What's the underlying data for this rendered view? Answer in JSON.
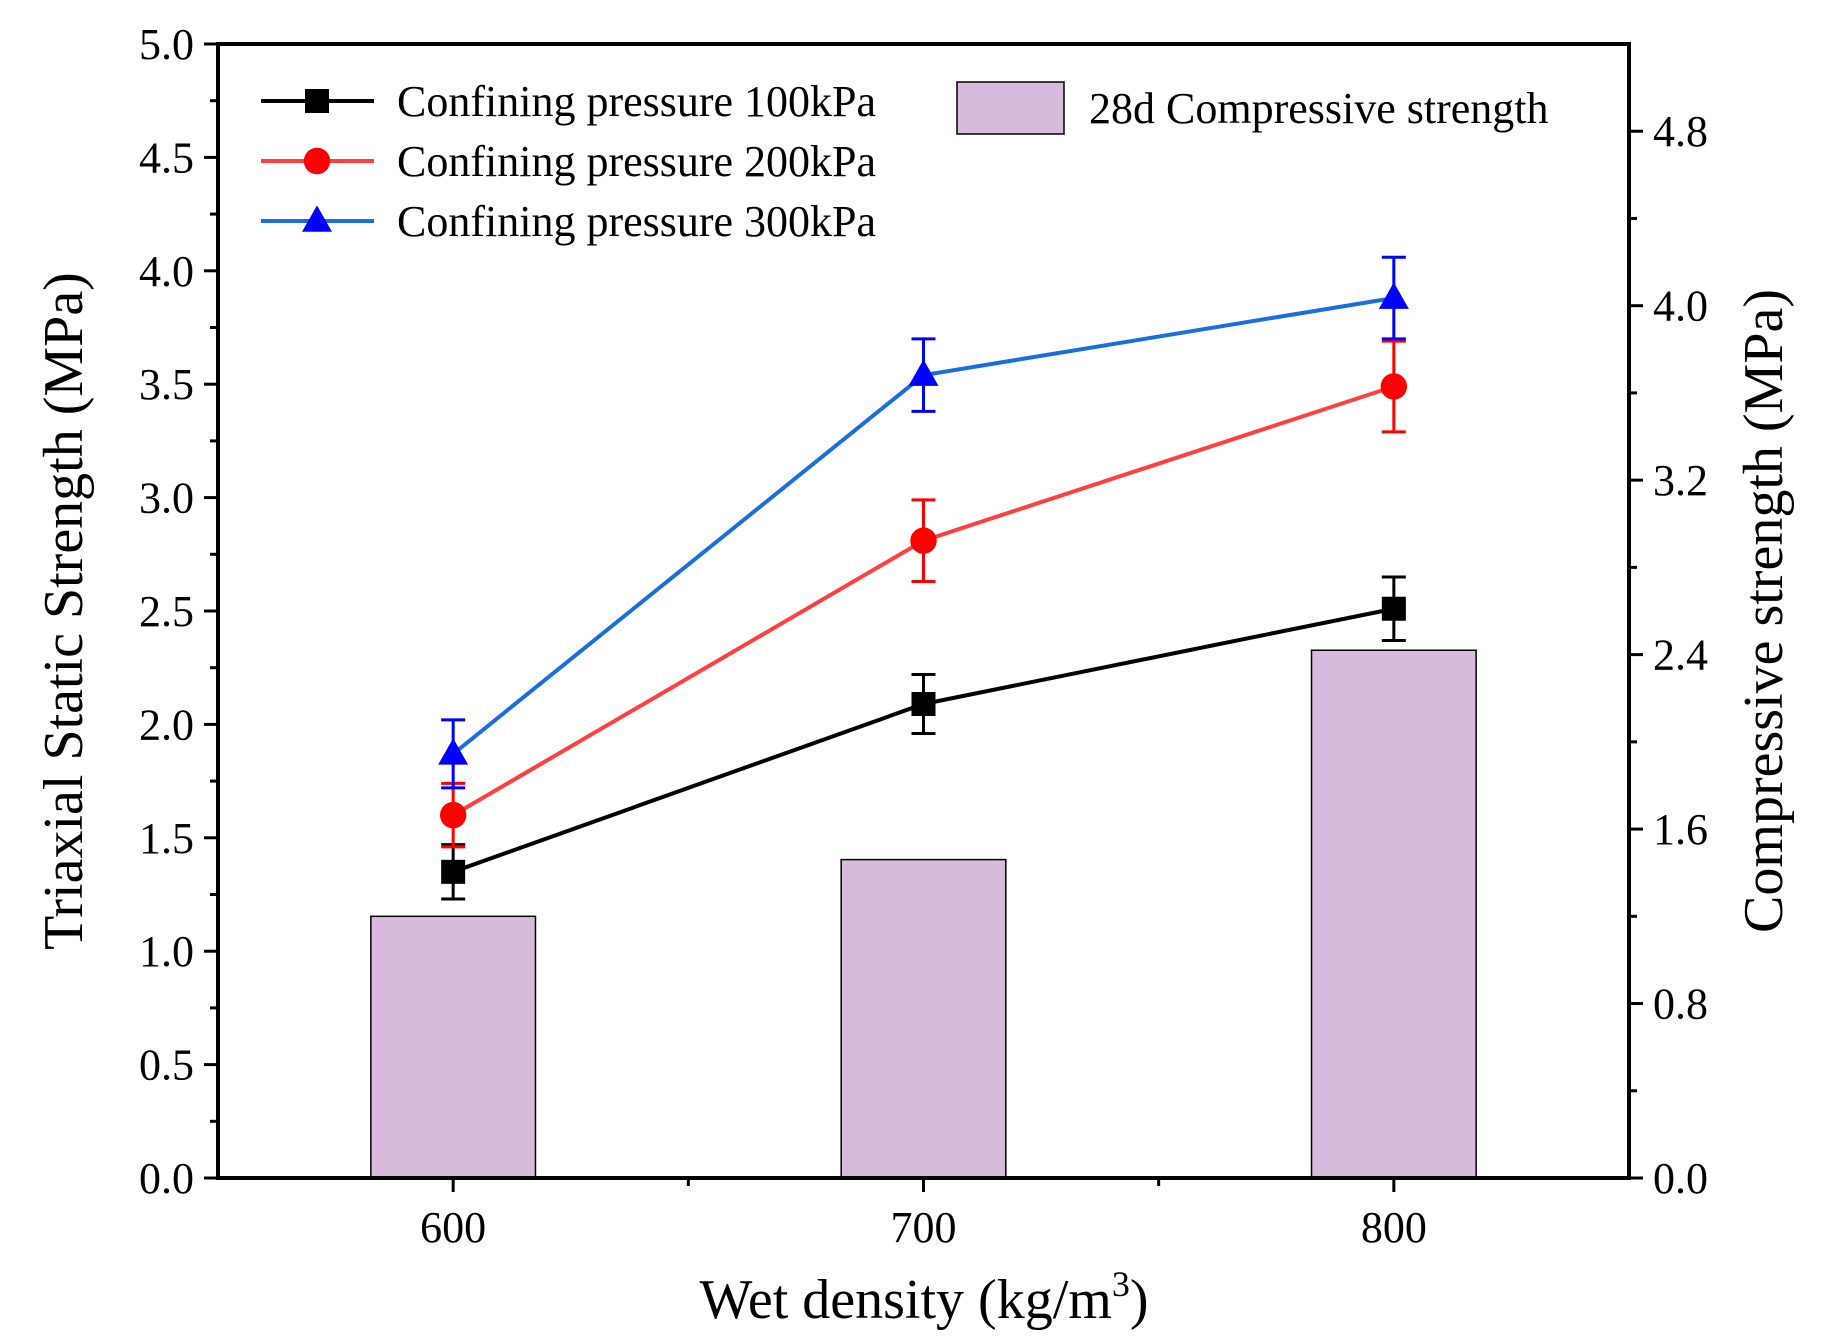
{
  "chart_data": {
    "type": "bar+line",
    "xlabel": "Wet density (kg/m",
    "xlabel_sup": "3",
    "xlabel_end": ")",
    "ylabel": "Triaxial Static Strength (MPa)",
    "y2label": "Compressive strength (MPa)",
    "x": [
      600,
      700,
      800
    ],
    "xticks": [
      "600",
      "700",
      "800"
    ],
    "xlim": [
      550,
      850
    ],
    "ylim": [
      0,
      5.0
    ],
    "yticks": [
      "0.0",
      "0.5",
      "1.0",
      "1.5",
      "2.0",
      "2.5",
      "3.0",
      "3.5",
      "4.0",
      "4.5",
      "5.0"
    ],
    "y2lim": [
      0,
      5.2
    ],
    "y2ticks": [
      "0.0",
      "0.8",
      "1.6",
      "2.4",
      "3.2",
      "4.0",
      "4.8"
    ],
    "bars": {
      "name": "28d Compressive strength",
      "axis": "right",
      "values": [
        1.2,
        1.46,
        2.42
      ],
      "color": "#d8bbdc"
    },
    "series": [
      {
        "name": "Confining pressure 100kPa",
        "marker": "square",
        "color": "#000000",
        "values": [
          1.35,
          2.09,
          2.51
        ],
        "errors": [
          0.12,
          0.13,
          0.14
        ]
      },
      {
        "name": "Confining pressure 200kPa",
        "marker": "circle",
        "color": "#ff4040",
        "marker_color": "#ff0000",
        "values": [
          1.6,
          2.81,
          3.49
        ],
        "errors": [
          0.14,
          0.18,
          0.2
        ]
      },
      {
        "name": "Confining pressure 300kPa",
        "marker": "triangle",
        "color": "#1a6fe0",
        "marker_color": "#0000ff",
        "values": [
          1.87,
          3.54,
          3.88
        ],
        "errors": [
          0.15,
          0.16,
          0.18
        ]
      }
    ],
    "legend": "top-left"
  }
}
